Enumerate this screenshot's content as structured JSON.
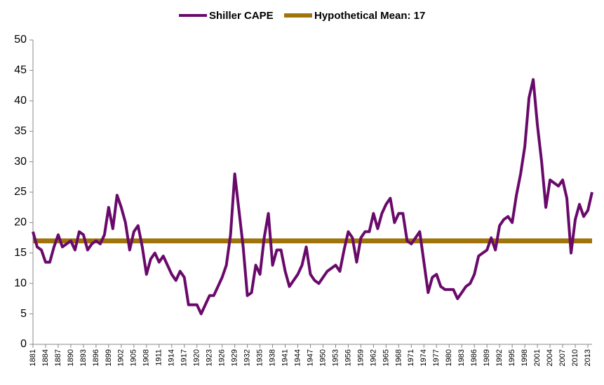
{
  "chart_data": {
    "type": "line",
    "x": [
      1881,
      1882,
      1883,
      1884,
      1885,
      1886,
      1887,
      1888,
      1889,
      1890,
      1891,
      1892,
      1893,
      1894,
      1895,
      1896,
      1897,
      1898,
      1899,
      1900,
      1901,
      1902,
      1903,
      1904,
      1905,
      1906,
      1907,
      1908,
      1909,
      1910,
      1911,
      1912,
      1913,
      1914,
      1915,
      1916,
      1917,
      1918,
      1919,
      1920,
      1921,
      1922,
      1923,
      1924,
      1925,
      1926,
      1927,
      1928,
      1929,
      1930,
      1931,
      1932,
      1933,
      1934,
      1935,
      1936,
      1937,
      1938,
      1939,
      1940,
      1941,
      1942,
      1943,
      1944,
      1945,
      1946,
      1947,
      1948,
      1949,
      1950,
      1951,
      1952,
      1953,
      1954,
      1955,
      1956,
      1957,
      1958,
      1959,
      1960,
      1961,
      1962,
      1963,
      1964,
      1965,
      1966,
      1967,
      1968,
      1969,
      1970,
      1971,
      1972,
      1973,
      1974,
      1975,
      1976,
      1977,
      1978,
      1979,
      1980,
      1981,
      1982,
      1983,
      1984,
      1985,
      1986,
      1987,
      1988,
      1989,
      1990,
      1991,
      1992,
      1993,
      1994,
      1995,
      1996,
      1997,
      1998,
      1999,
      2000,
      2001,
      2002,
      2003,
      2004,
      2005,
      2006,
      2007,
      2008,
      2009,
      2010,
      2011,
      2012,
      2013,
      2014
    ],
    "series": [
      {
        "name": "Shiller CAPE",
        "color": "#690a6b",
        "values": [
          18.5,
          16,
          15.5,
          13.5,
          13.5,
          16,
          18,
          16,
          16.5,
          17,
          15.5,
          18.5,
          18,
          15.5,
          16.5,
          17,
          16.5,
          18,
          22.5,
          19,
          24.5,
          22.5,
          20,
          15.5,
          18.5,
          19.5,
          16,
          11.5,
          14,
          15,
          13.5,
          14.5,
          13,
          11.5,
          10.5,
          12,
          11,
          6.5,
          6.5,
          6.5,
          5,
          6.5,
          8,
          8,
          9.5,
          11,
          13,
          18,
          28,
          22,
          16,
          8,
          8.5,
          13,
          11.5,
          17.5,
          21.5,
          13,
          15.5,
          15.5,
          12,
          9.5,
          10.5,
          11.5,
          13,
          16,
          11.5,
          10.5,
          10,
          11,
          12,
          12.5,
          13,
          12,
          15.5,
          18.5,
          17.5,
          13.5,
          17.5,
          18.5,
          18.5,
          21.5,
          19,
          21.5,
          23,
          24,
          20,
          21.5,
          21.5,
          17,
          16.5,
          17.5,
          18.5,
          13.5,
          8.5,
          11,
          11.5,
          9.5,
          9,
          9,
          9,
          7.5,
          8.5,
          9.5,
          10,
          11.5,
          14.5,
          15,
          15.5,
          17.5,
          15.5,
          19.5,
          20.5,
          21,
          20,
          24.5,
          28,
          32.5,
          40.5,
          43.5,
          36,
          30,
          22.5,
          27,
          26.5,
          26,
          27,
          24,
          15,
          20.5,
          23,
          21,
          22,
          25
        ]
      },
      {
        "name": "Hypothetical Mean: 17",
        "color": "#a0740a",
        "values": [
          17,
          17,
          17,
          17,
          17,
          17,
          17,
          17,
          17,
          17,
          17,
          17,
          17,
          17,
          17,
          17,
          17,
          17,
          17,
          17,
          17,
          17,
          17,
          17,
          17,
          17,
          17,
          17,
          17,
          17,
          17,
          17,
          17,
          17,
          17,
          17,
          17,
          17,
          17,
          17,
          17,
          17,
          17,
          17,
          17,
          17,
          17,
          17,
          17,
          17,
          17,
          17,
          17,
          17,
          17,
          17,
          17,
          17,
          17,
          17,
          17,
          17,
          17,
          17,
          17,
          17,
          17,
          17,
          17,
          17,
          17,
          17,
          17,
          17,
          17,
          17,
          17,
          17,
          17,
          17,
          17,
          17,
          17,
          17,
          17,
          17,
          17,
          17,
          17,
          17,
          17,
          17,
          17,
          17,
          17,
          17,
          17,
          17,
          17,
          17,
          17,
          17,
          17,
          17,
          17,
          17,
          17,
          17,
          17,
          17,
          17,
          17,
          17,
          17,
          17,
          17,
          17,
          17,
          17,
          17,
          17,
          17,
          17,
          17,
          17,
          17,
          17,
          17,
          17,
          17,
          17,
          17,
          17,
          17
        ]
      }
    ],
    "xlim": [
      1881,
      2014
    ],
    "xticks": [
      1881,
      1884,
      1887,
      1890,
      1893,
      1896,
      1899,
      1902,
      1905,
      1908,
      1911,
      1914,
      1917,
      1920,
      1923,
      1926,
      1929,
      1932,
      1935,
      1938,
      1941,
      1944,
      1947,
      1950,
      1953,
      1956,
      1959,
      1962,
      1965,
      1968,
      1971,
      1974,
      1977,
      1980,
      1983,
      1986,
      1989,
      1992,
      1995,
      1998,
      2001,
      2004,
      2007,
      2010,
      2013
    ],
    "ylim": [
      0,
      50
    ],
    "yticks": [
      0,
      5,
      10,
      15,
      20,
      25,
      30,
      35,
      40,
      45,
      50
    ],
    "grid": false,
    "legend": "top"
  }
}
